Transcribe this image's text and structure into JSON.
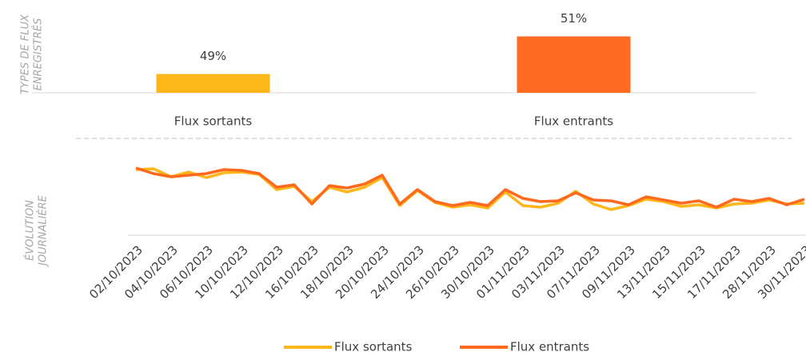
{
  "chart_data": [
    {
      "type": "bar",
      "section_label": [
        "TYPES DE FLUX",
        "ENREGISTRÉS"
      ],
      "categories": [
        "Flux sortants",
        "Flux entrants"
      ],
      "values": [
        49,
        51
      ],
      "value_labels": [
        "49%",
        "51%"
      ],
      "colors": [
        "#fdb71a",
        "#ff6b21"
      ],
      "ylim": [
        48,
        52
      ]
    },
    {
      "type": "line",
      "section_label": [
        "ÉVOLUTION",
        "JOURNALIÈRE"
      ],
      "categories": [
        "02/10/2023",
        null,
        "04/10/2023",
        null,
        "06/10/2023",
        null,
        "10/10/2023",
        null,
        "12/10/2023",
        null,
        "16/10/2023",
        null,
        "18/10/2023",
        null,
        "20/10/2023",
        null,
        "24/10/2023",
        null,
        "26/10/2023",
        null,
        "30/10/2023",
        null,
        "01/11/2023",
        null,
        "03/11/2023",
        null,
        "07/11/2023",
        null,
        "09/11/2023",
        null,
        "13/11/2023",
        null,
        "15/11/2023",
        null,
        "17/11/2023",
        null,
        "28/11/2023",
        null,
        "30/11/2023"
      ],
      "series": [
        {
          "name": "Flux sortants",
          "color": "#fdb71a",
          "values": [
            82,
            83,
            73,
            79,
            72,
            78,
            79,
            76,
            57,
            61,
            42,
            60,
            54,
            60,
            72,
            37,
            56,
            41,
            35,
            38,
            34,
            54,
            37,
            35,
            40,
            55,
            39,
            32,
            37,
            45,
            42,
            36,
            38,
            34,
            39,
            40,
            44,
            39,
            40
          ]
        },
        {
          "name": "Flux entrants",
          "color": "#ff6a1f",
          "values": [
            84,
            77,
            73,
            75,
            77,
            82,
            81,
            77,
            60,
            63,
            39,
            62,
            59,
            64,
            75,
            39,
            57,
            42,
            37,
            41,
            37,
            57,
            46,
            42,
            43,
            53,
            44,
            43,
            38,
            48,
            44,
            40,
            43,
            35,
            45,
            42,
            46,
            38,
            45
          ]
        }
      ],
      "ylim": [
        0,
        100
      ],
      "legend": "bottom"
    }
  ]
}
